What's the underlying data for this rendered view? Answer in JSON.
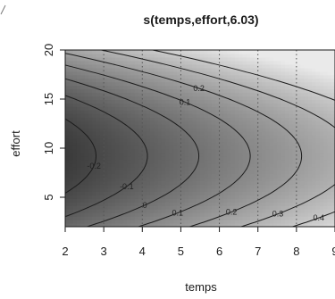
{
  "chart_data": {
    "type": "heatmap",
    "subtype": "contour",
    "title": "s(temps,effort,6.03)",
    "xlabel": "temps",
    "ylabel": "effort",
    "xlim": [
      2,
      9
    ],
    "ylim": [
      2,
      20
    ],
    "x_ticks": [
      "2",
      "3",
      "4",
      "5",
      "6",
      "7",
      "8",
      "9"
    ],
    "y_ticks": [
      "5",
      "10",
      "15",
      "20"
    ],
    "grid": "dotted vertical",
    "colormap": "grayscale (darker = lower)",
    "contour_levels": [
      "-0.2",
      "-0.1",
      "0",
      "0.1",
      "0.2",
      "0.3",
      "0.4"
    ],
    "contour_labels_shown": [
      "-0.2",
      "-0.1",
      "0",
      "0.1",
      "0.2",
      "0.3",
      "0.4",
      "0.1",
      "0.2"
    ],
    "center": {
      "x": 2,
      "y": 9.2
    }
  },
  "colors": {
    "dark": "#3a3a3a",
    "light": "#e4e4e4",
    "line": "#1c1c1c",
    "grid": "#555555"
  }
}
